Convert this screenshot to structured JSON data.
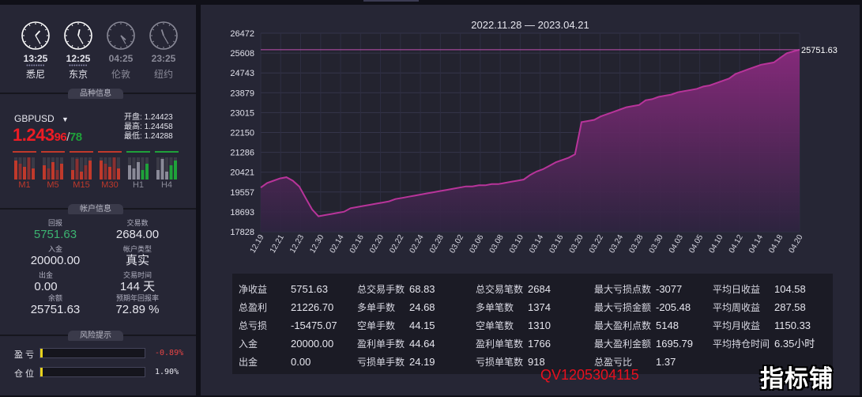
{
  "clocks": [
    {
      "time": "13:25",
      "city": "悉尼",
      "active": true,
      "h": 13,
      "m": 25
    },
    {
      "time": "12:25",
      "city": "东京",
      "active": true,
      "h": 12,
      "m": 25
    },
    {
      "time": "04:25",
      "city": "伦敦",
      "active": false,
      "h": 4,
      "m": 25
    },
    {
      "time": "23:25",
      "city": "纽约",
      "active": false,
      "h": 23,
      "m": 25
    }
  ],
  "sections": {
    "symbol_info": "品种信息",
    "account_info": "帐户信息",
    "risk": "风险提示"
  },
  "symbol": {
    "name": "GBPUSD",
    "price_main": "1.243",
    "price_bid_tail": "96",
    "price_ask_tail": "78",
    "open_label": "开盘:",
    "open": "1.24423",
    "high_label": "最高:",
    "high": "1.24458",
    "low_label": "最低:",
    "low": "1.24288"
  },
  "timeframes": [
    {
      "label": "M1",
      "state": "down"
    },
    {
      "label": "M5",
      "state": "down"
    },
    {
      "label": "M15",
      "state": "down"
    },
    {
      "label": "M30",
      "state": "down"
    },
    {
      "label": "H1",
      "state": "up"
    },
    {
      "label": "H4",
      "state": "up"
    }
  ],
  "account": {
    "return_label": "回报",
    "return": "5751.63",
    "lots_label": "交易数",
    "lots": "2684.00",
    "deposit_label": "入金",
    "deposit": "20000.00",
    "type_label": "帐户类型",
    "type": "真实",
    "withdraw_label": "出金",
    "withdraw": "0.00",
    "days_label": "交易时间",
    "days": "144 天",
    "balance_label": "余额",
    "balance": "25751.63",
    "annual_label": "预期年回报率",
    "annual": "72.89 %"
  },
  "risk": {
    "profit_label": "盈 亏",
    "profit_value": "-0.89%",
    "profit_fill": 0.01,
    "position_label": "仓 位",
    "position_value": "1.90%",
    "position_fill": 0.019
  },
  "chart_data": {
    "type": "area",
    "title": "2022.11.28 — 2023.04.21",
    "last_label": "25751.63",
    "ylim": [
      17828,
      26472
    ],
    "yticks": [
      26472,
      25608,
      24743,
      23879,
      23015,
      22150,
      21286,
      20421,
      19557,
      18693,
      17828
    ],
    "xticks": [
      "12.19",
      "12.21",
      "12.23",
      "12.30",
      "02.14",
      "02.16",
      "02.20",
      "02.22",
      "02.24",
      "02.28",
      "03.02",
      "03.06",
      "03.08",
      "03.10",
      "03.14",
      "03.16",
      "03.20",
      "03.22",
      "03.24",
      "03.28",
      "03.30",
      "04.03",
      "04.05",
      "04.10",
      "04.12",
      "04.14",
      "04.18",
      "04.20"
    ],
    "values": [
      19750,
      19950,
      20050,
      20150,
      20200,
      20050,
      19800,
      19300,
      18800,
      18500,
      18550,
      18600,
      18650,
      18700,
      18850,
      18900,
      18950,
      19000,
      19050,
      19100,
      19150,
      19250,
      19300,
      19350,
      19400,
      19450,
      19500,
      19550,
      19600,
      19650,
      19700,
      19750,
      19800,
      19800,
      19850,
      19850,
      19900,
      19900,
      19950,
      20000,
      20050,
      20100,
      20300,
      20450,
      20550,
      20700,
      20850,
      20950,
      21050,
      21200,
      22600,
      22650,
      22700,
      22850,
      22950,
      23050,
      23150,
      23250,
      23300,
      23350,
      23550,
      23600,
      23700,
      23750,
      23800,
      23900,
      23950,
      24000,
      24050,
      24150,
      24200,
      24300,
      24400,
      24500,
      24700,
      24800,
      24900,
      25000,
      25100,
      25150,
      25200,
      25400,
      25600,
      25680,
      25751.63
    ],
    "grid": true,
    "color": "#b8349a"
  },
  "stats": [
    [
      {
        "k": "净收益",
        "v": "5751.63"
      },
      {
        "k": "总盈利",
        "v": "21226.70"
      },
      {
        "k": "总亏损",
        "v": "-15475.07"
      },
      {
        "k": "入金",
        "v": "20000.00"
      },
      {
        "k": "出金",
        "v": "0.00"
      }
    ],
    [
      {
        "k": "总交易手数",
        "v": "68.83"
      },
      {
        "k": "多单手数",
        "v": "24.68"
      },
      {
        "k": "空单手数",
        "v": "44.15"
      },
      {
        "k": "盈利单手数",
        "v": "44.64"
      },
      {
        "k": "亏损单手数",
        "v": "24.19"
      }
    ],
    [
      {
        "k": "总交易笔数",
        "v": "2684"
      },
      {
        "k": "多单笔数",
        "v": "1374"
      },
      {
        "k": "空单笔数",
        "v": "1310"
      },
      {
        "k": "盈利单笔数",
        "v": "1766"
      },
      {
        "k": "亏损单笔数",
        "v": "918"
      }
    ],
    [
      {
        "k": "最大亏损点数",
        "v": "-3077"
      },
      {
        "k": "最大亏损金额",
        "v": "-205.48"
      },
      {
        "k": "最大盈利点数",
        "v": "5148"
      },
      {
        "k": "最大盈利金额",
        "v": "1695.79"
      },
      {
        "k": "总盈亏比",
        "v": "1.37"
      }
    ],
    [
      {
        "k": "平均日收益",
        "v": "104.58"
      },
      {
        "k": "平均周收益",
        "v": "287.58"
      },
      {
        "k": "平均月收益",
        "v": "1150.33"
      },
      {
        "k": "平均持仓时间",
        "v": "6.35小时"
      }
    ]
  ],
  "watermarks": {
    "contact": "QV1205304115",
    "brand": "指标铺"
  }
}
